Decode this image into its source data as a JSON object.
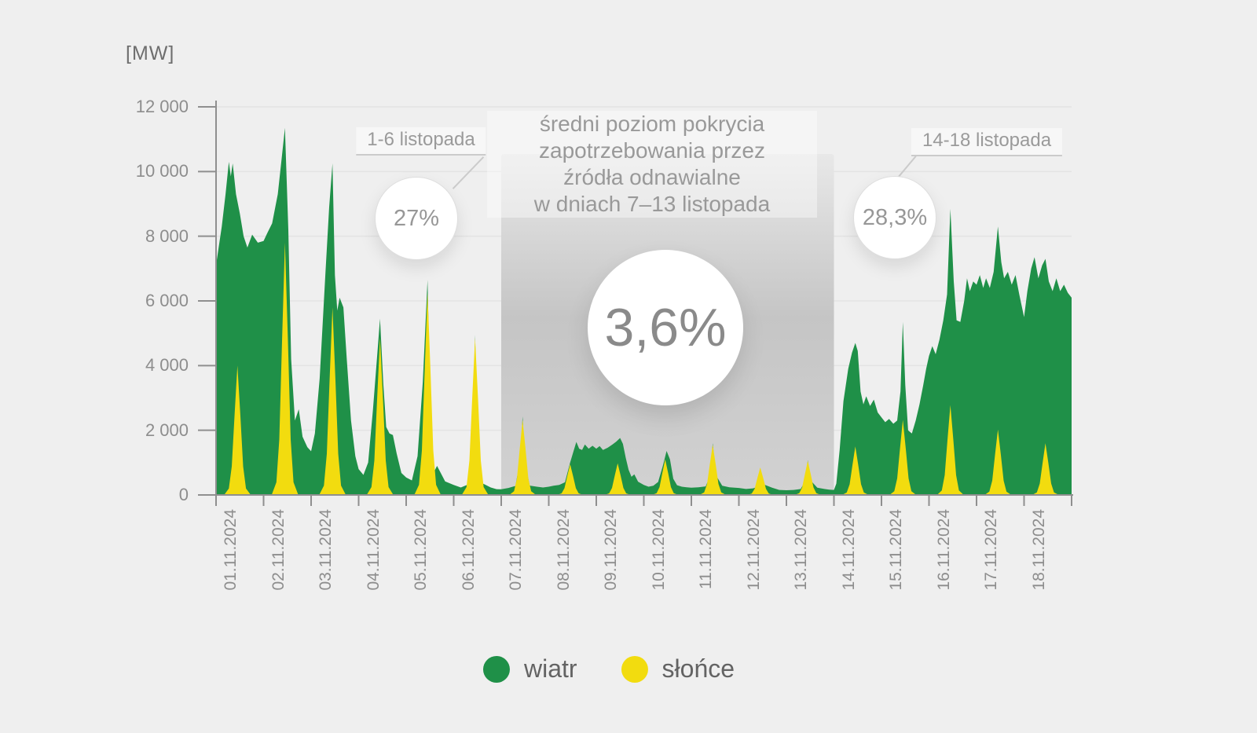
{
  "annotations": {
    "left_callout": {
      "label": "1-6 listopada",
      "value": "27%"
    },
    "right_callout": {
      "label": "14-18 listopada",
      "value": "28,3%"
    },
    "center_text": {
      "lines": [
        "średni poziom pokrycia",
        "zapotrzebowania przez",
        "źródła odnawialne",
        "w dniach 7–13 listopada"
      ],
      "value": "3,6%"
    }
  },
  "chart_data": {
    "type": "area",
    "unit_label": "[MW]",
    "ylim": [
      0,
      12000
    ],
    "ytick_step": 2000,
    "yticks": [
      {
        "value": 0,
        "label": "0"
      },
      {
        "value": 2000,
        "label": "2 000"
      },
      {
        "value": 4000,
        "label": "4 000"
      },
      {
        "value": 6000,
        "label": "6 000"
      },
      {
        "value": 8000,
        "label": "8 000"
      },
      {
        "value": 10000,
        "label": "10 000"
      },
      {
        "value": 12000,
        "label": "12 000"
      }
    ],
    "grid": true,
    "colors": {
      "wind": "#1f9048",
      "solar": "#f2dc0f",
      "axis": "#8f8f8f",
      "gridline": "#e3e3e3",
      "band_top": "#e8e8e8",
      "band_mid": "#c5c5c5",
      "band_bottom": "#d2d2d2"
    },
    "legend": [
      {
        "label": "wiatr",
        "color": "#1f9048"
      },
      {
        "label": "słońce",
        "color": "#f2dc0f"
      }
    ],
    "highlight_band": {
      "start_day_index": 6,
      "end_day_index": 13
    },
    "solar_bell_shape": [
      [
        0.17,
        0
      ],
      [
        0.27,
        0.05
      ],
      [
        0.33,
        0.22
      ],
      [
        0.39,
        0.62
      ],
      [
        0.45,
        1
      ],
      [
        0.51,
        0.62
      ],
      [
        0.57,
        0.22
      ],
      [
        0.63,
        0.05
      ],
      [
        0.73,
        0
      ]
    ],
    "days": [
      {
        "date": "01.11.2024",
        "solar_peak_mw": 4000,
        "wind_profile": [
          [
            0,
            7100
          ],
          [
            0.05,
            7600
          ],
          [
            0.12,
            8300
          ],
          [
            0.2,
            9300
          ],
          [
            0.27,
            10300
          ],
          [
            0.31,
            9850
          ],
          [
            0.35,
            10250
          ],
          [
            0.42,
            9300
          ],
          [
            0.5,
            8700
          ],
          [
            0.58,
            8000
          ],
          [
            0.66,
            7650
          ],
          [
            0.76,
            8050
          ],
          [
            0.88,
            7800
          ],
          [
            1,
            7850
          ]
        ]
      },
      {
        "date": "02.11.2024",
        "solar_peak_mw": 7800,
        "wind_profile": [
          [
            0,
            7850
          ],
          [
            0.08,
            8100
          ],
          [
            0.18,
            8400
          ],
          [
            0.3,
            9300
          ],
          [
            0.38,
            10400
          ],
          [
            0.45,
            11350
          ],
          [
            0.52,
            8200
          ],
          [
            0.58,
            4200
          ],
          [
            0.66,
            2300
          ],
          [
            0.74,
            2650
          ],
          [
            0.82,
            1800
          ],
          [
            0.92,
            1480
          ],
          [
            1,
            1350
          ]
        ]
      },
      {
        "date": "03.11.2024",
        "solar_peak_mw": 5800,
        "wind_profile": [
          [
            0,
            1350
          ],
          [
            0.08,
            1900
          ],
          [
            0.18,
            3600
          ],
          [
            0.3,
            6800
          ],
          [
            0.38,
            8900
          ],
          [
            0.45,
            10250
          ],
          [
            0.5,
            6800
          ],
          [
            0.55,
            5700
          ],
          [
            0.6,
            6100
          ],
          [
            0.68,
            5800
          ],
          [
            0.75,
            4200
          ],
          [
            0.84,
            2300
          ],
          [
            0.93,
            1200
          ],
          [
            1,
            800
          ]
        ]
      },
      {
        "date": "04.11.2024",
        "solar_peak_mw": 4850,
        "wind_profile": [
          [
            0,
            800
          ],
          [
            0.1,
            620
          ],
          [
            0.2,
            1000
          ],
          [
            0.3,
            2600
          ],
          [
            0.4,
            4500
          ],
          [
            0.45,
            5450
          ],
          [
            0.52,
            3400
          ],
          [
            0.58,
            2100
          ],
          [
            0.65,
            1900
          ],
          [
            0.72,
            1850
          ],
          [
            0.8,
            1280
          ],
          [
            0.9,
            680
          ],
          [
            1,
            540
          ]
        ]
      },
      {
        "date": "05.11.2024",
        "solar_peak_mw": 6250,
        "wind_profile": [
          [
            0,
            540
          ],
          [
            0.12,
            450
          ],
          [
            0.24,
            1200
          ],
          [
            0.35,
            3500
          ],
          [
            0.45,
            6650
          ],
          [
            0.52,
            1800
          ],
          [
            0.58,
            700
          ],
          [
            0.65,
            900
          ],
          [
            0.72,
            700
          ],
          [
            0.82,
            420
          ],
          [
            1,
            310
          ]
        ]
      },
      {
        "date": "06.11.2024",
        "solar_peak_mw": 4850,
        "wind_profile": [
          [
            0,
            310
          ],
          [
            0.15,
            230
          ],
          [
            0.3,
            320
          ],
          [
            0.4,
            1500
          ],
          [
            0.45,
            4950
          ],
          [
            0.5,
            1500
          ],
          [
            0.62,
            350
          ],
          [
            0.78,
            230
          ],
          [
            0.9,
            180
          ],
          [
            1,
            175
          ]
        ]
      },
      {
        "date": "07.11.2024",
        "solar_peak_mw": 2320,
        "wind_profile": [
          [
            0,
            175
          ],
          [
            0.15,
            215
          ],
          [
            0.3,
            280
          ],
          [
            0.4,
            1100
          ],
          [
            0.45,
            2430
          ],
          [
            0.5,
            1000
          ],
          [
            0.6,
            290
          ],
          [
            0.75,
            255
          ],
          [
            0.88,
            230
          ],
          [
            1,
            255
          ]
        ]
      },
      {
        "date": "08.11.2024",
        "solar_peak_mw": 950,
        "wind_profile": [
          [
            0,
            255
          ],
          [
            0.1,
            285
          ],
          [
            0.22,
            310
          ],
          [
            0.34,
            390
          ],
          [
            0.45,
            1000
          ],
          [
            0.52,
            1350
          ],
          [
            0.58,
            1640
          ],
          [
            0.64,
            1430
          ],
          [
            0.7,
            1390
          ],
          [
            0.76,
            1560
          ],
          [
            0.84,
            1430
          ],
          [
            0.92,
            1520
          ],
          [
            1,
            1430
          ]
        ]
      },
      {
        "date": "09.11.2024",
        "solar_peak_mw": 980,
        "wind_profile": [
          [
            0,
            1430
          ],
          [
            0.07,
            1510
          ],
          [
            0.14,
            1390
          ],
          [
            0.24,
            1460
          ],
          [
            0.34,
            1560
          ],
          [
            0.42,
            1650
          ],
          [
            0.5,
            1760
          ],
          [
            0.56,
            1580
          ],
          [
            0.62,
            1150
          ],
          [
            0.68,
            780
          ],
          [
            0.74,
            560
          ],
          [
            0.8,
            640
          ],
          [
            0.88,
            410
          ],
          [
            1,
            310
          ]
        ]
      },
      {
        "date": "10.11.2024",
        "solar_peak_mw": 1100,
        "wind_profile": [
          [
            0,
            310
          ],
          [
            0.1,
            255
          ],
          [
            0.2,
            285
          ],
          [
            0.3,
            400
          ],
          [
            0.4,
            900
          ],
          [
            0.48,
            1360
          ],
          [
            0.55,
            1100
          ],
          [
            0.62,
            500
          ],
          [
            0.7,
            300
          ],
          [
            0.8,
            255
          ],
          [
            0.9,
            235
          ],
          [
            1,
            225
          ]
        ]
      },
      {
        "date": "11.11.2024",
        "solar_peak_mw": 1550,
        "wind_profile": [
          [
            0,
            225
          ],
          [
            0.15,
            235
          ],
          [
            0.3,
            265
          ],
          [
            0.4,
            600
          ],
          [
            0.45,
            1600
          ],
          [
            0.52,
            600
          ],
          [
            0.65,
            285
          ],
          [
            0.8,
            235
          ],
          [
            1,
            215
          ]
        ]
      },
      {
        "date": "12.11.2024",
        "solar_peak_mw": 850,
        "wind_profile": [
          [
            0,
            215
          ],
          [
            0.15,
            185
          ],
          [
            0.3,
            205
          ],
          [
            0.45,
            290
          ],
          [
            0.55,
            310
          ],
          [
            0.7,
            225
          ],
          [
            0.85,
            155
          ],
          [
            1,
            145
          ]
        ]
      },
      {
        "date": "13.11.2024",
        "solar_peak_mw": 1050,
        "wind_profile": [
          [
            0,
            145
          ],
          [
            0.15,
            155
          ],
          [
            0.3,
            185
          ],
          [
            0.4,
            450
          ],
          [
            0.45,
            1075
          ],
          [
            0.52,
            430
          ],
          [
            0.65,
            225
          ],
          [
            0.8,
            185
          ],
          [
            0.9,
            165
          ],
          [
            1,
            155
          ]
        ]
      },
      {
        "date": "14.11.2024",
        "solar_peak_mw": 1500,
        "wind_profile": [
          [
            0,
            155
          ],
          [
            0.05,
            350
          ],
          [
            0.12,
            1400
          ],
          [
            0.2,
            2900
          ],
          [
            0.3,
            3900
          ],
          [
            0.38,
            4400
          ],
          [
            0.45,
            4700
          ],
          [
            0.5,
            4450
          ],
          [
            0.56,
            3200
          ],
          [
            0.62,
            2800
          ],
          [
            0.68,
            3050
          ],
          [
            0.76,
            2750
          ],
          [
            0.84,
            2950
          ],
          [
            0.92,
            2550
          ],
          [
            1,
            2400
          ]
        ]
      },
      {
        "date": "15.11.2024",
        "solar_peak_mw": 2320,
        "wind_profile": [
          [
            0,
            2400
          ],
          [
            0.08,
            2250
          ],
          [
            0.16,
            2350
          ],
          [
            0.25,
            2200
          ],
          [
            0.33,
            2300
          ],
          [
            0.4,
            3200
          ],
          [
            0.45,
            5350
          ],
          [
            0.5,
            3400
          ],
          [
            0.56,
            2000
          ],
          [
            0.64,
            1900
          ],
          [
            0.72,
            2300
          ],
          [
            0.8,
            2800
          ],
          [
            0.88,
            3400
          ],
          [
            0.94,
            3900
          ],
          [
            1,
            4300
          ]
        ]
      },
      {
        "date": "16.11.2024",
        "solar_peak_mw": 2780,
        "wind_profile": [
          [
            0,
            4300
          ],
          [
            0.07,
            4600
          ],
          [
            0.14,
            4350
          ],
          [
            0.22,
            4800
          ],
          [
            0.3,
            5400
          ],
          [
            0.38,
            6200
          ],
          [
            0.45,
            8850
          ],
          [
            0.52,
            6600
          ],
          [
            0.58,
            5400
          ],
          [
            0.66,
            5350
          ],
          [
            0.74,
            6000
          ],
          [
            0.8,
            6700
          ],
          [
            0.86,
            6300
          ],
          [
            0.93,
            6600
          ],
          [
            1,
            6500
          ]
        ]
      },
      {
        "date": "17.11.2024",
        "solar_peak_mw": 2020,
        "wind_profile": [
          [
            0,
            6500
          ],
          [
            0.07,
            6800
          ],
          [
            0.14,
            6400
          ],
          [
            0.2,
            6700
          ],
          [
            0.28,
            6400
          ],
          [
            0.36,
            6900
          ],
          [
            0.45,
            8300
          ],
          [
            0.52,
            7200
          ],
          [
            0.58,
            6700
          ],
          [
            0.66,
            6900
          ],
          [
            0.74,
            6500
          ],
          [
            0.82,
            6800
          ],
          [
            0.9,
            6200
          ],
          [
            1,
            5500
          ]
        ]
      },
      {
        "date": "18.11.2024",
        "solar_peak_mw": 1600,
        "wind_profile": [
          [
            0,
            5500
          ],
          [
            0.07,
            6300
          ],
          [
            0.15,
            7000
          ],
          [
            0.22,
            7350
          ],
          [
            0.3,
            6700
          ],
          [
            0.38,
            7100
          ],
          [
            0.45,
            7300
          ],
          [
            0.52,
            6600
          ],
          [
            0.6,
            6300
          ],
          [
            0.68,
            6700
          ],
          [
            0.76,
            6300
          ],
          [
            0.84,
            6500
          ],
          [
            0.92,
            6250
          ],
          [
            1,
            6100
          ]
        ]
      }
    ]
  }
}
